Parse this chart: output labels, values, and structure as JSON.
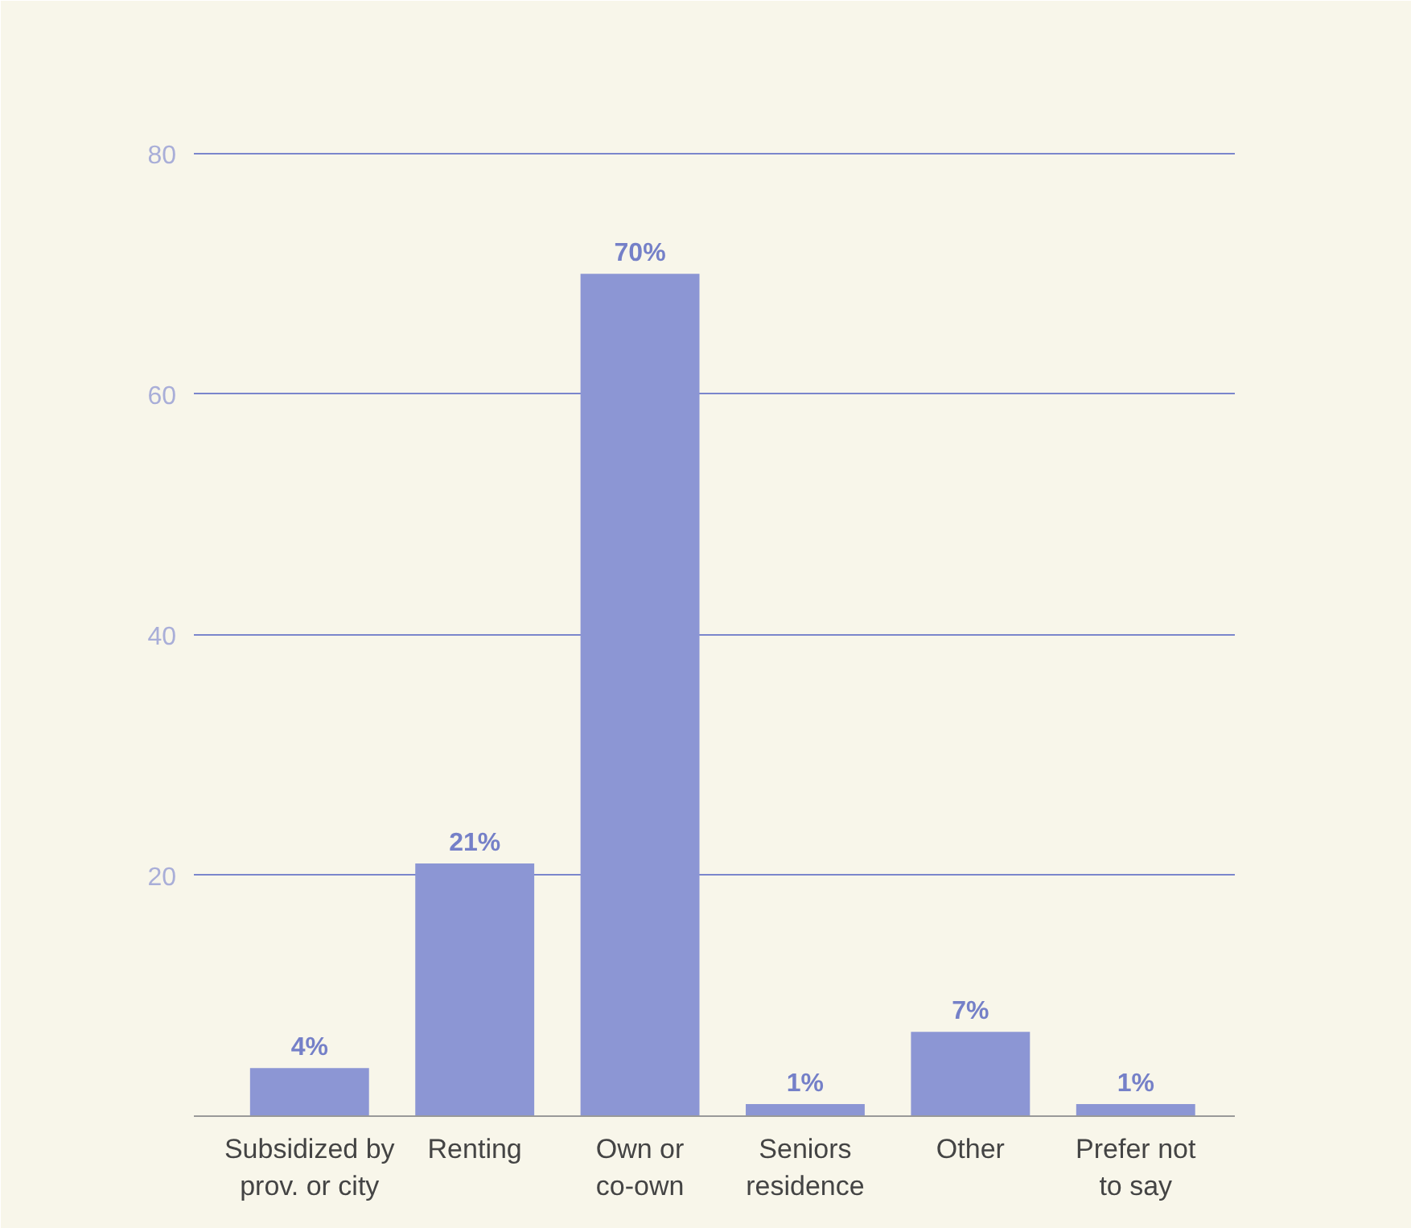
{
  "chart_data": {
    "type": "bar",
    "categories": [
      "Subsidized by\nprov. or city",
      "Renting",
      "Own or\nco-own",
      "Seniors\nresidence",
      "Other",
      "Prefer not\nto say"
    ],
    "values": [
      4,
      21,
      70,
      1,
      7,
      1
    ],
    "value_labels": [
      "4%",
      "21%",
      "70%",
      "1%",
      "7%",
      "1%"
    ],
    "color": "#8c96d4",
    "ylim": [
      0,
      86
    ],
    "yticks": [
      20,
      40,
      60,
      80
    ],
    "grid": "y"
  }
}
